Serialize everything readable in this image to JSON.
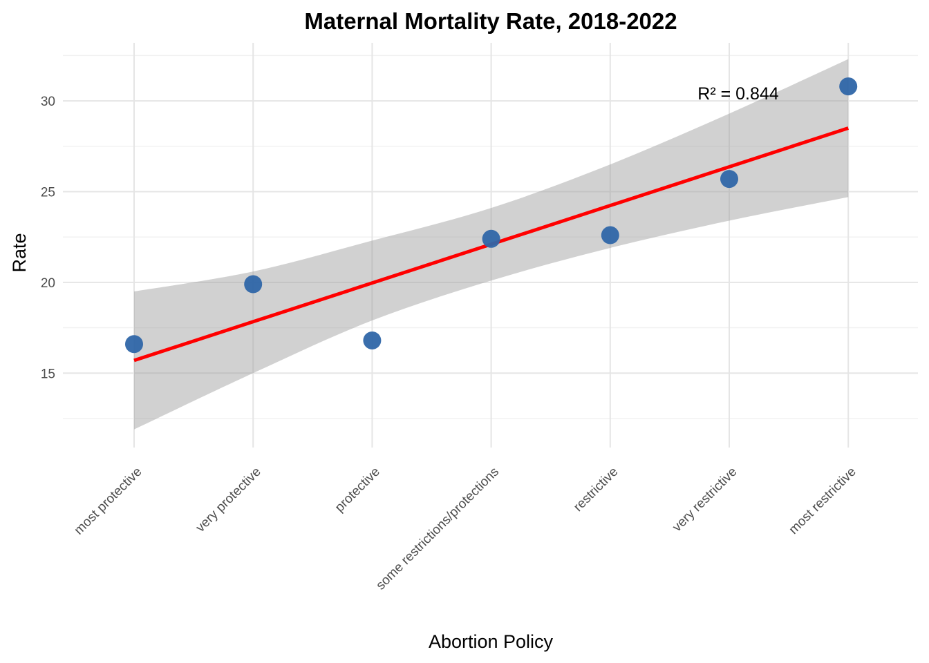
{
  "chart_data": {
    "type": "scatter",
    "title": "Maternal Mortality Rate, 2018-2022",
    "xlabel": "Abortion Policy",
    "ylabel": "Rate",
    "categories": [
      "most protective",
      "very protective",
      "protective",
      "some restrictions/protections",
      "restrictive",
      "very restrictive",
      "most restrictive"
    ],
    "series": [
      {
        "values": [
          16.6,
          19.9,
          16.8,
          22.4,
          22.6,
          25.7,
          30.8
        ]
      }
    ],
    "fit": {
      "type": "linear",
      "line": [
        15.7,
        28.5
      ],
      "ci_lower": [
        11.9,
        15.0,
        17.9,
        20.1,
        21.9,
        23.4,
        24.7
      ],
      "ci_upper": [
        19.5,
        20.6,
        22.3,
        24.1,
        26.5,
        29.3,
        32.3
      ]
    },
    "annotation": "R² = 0.844",
    "yticks": [
      15,
      20,
      25,
      30
    ],
    "ylim": [
      10.9,
      33.2
    ],
    "grid": true,
    "colors": {
      "point": "#2f66a8",
      "fit_line": "#ff0000",
      "ribbon": "#999999",
      "grid": "#e5e5e5"
    }
  }
}
